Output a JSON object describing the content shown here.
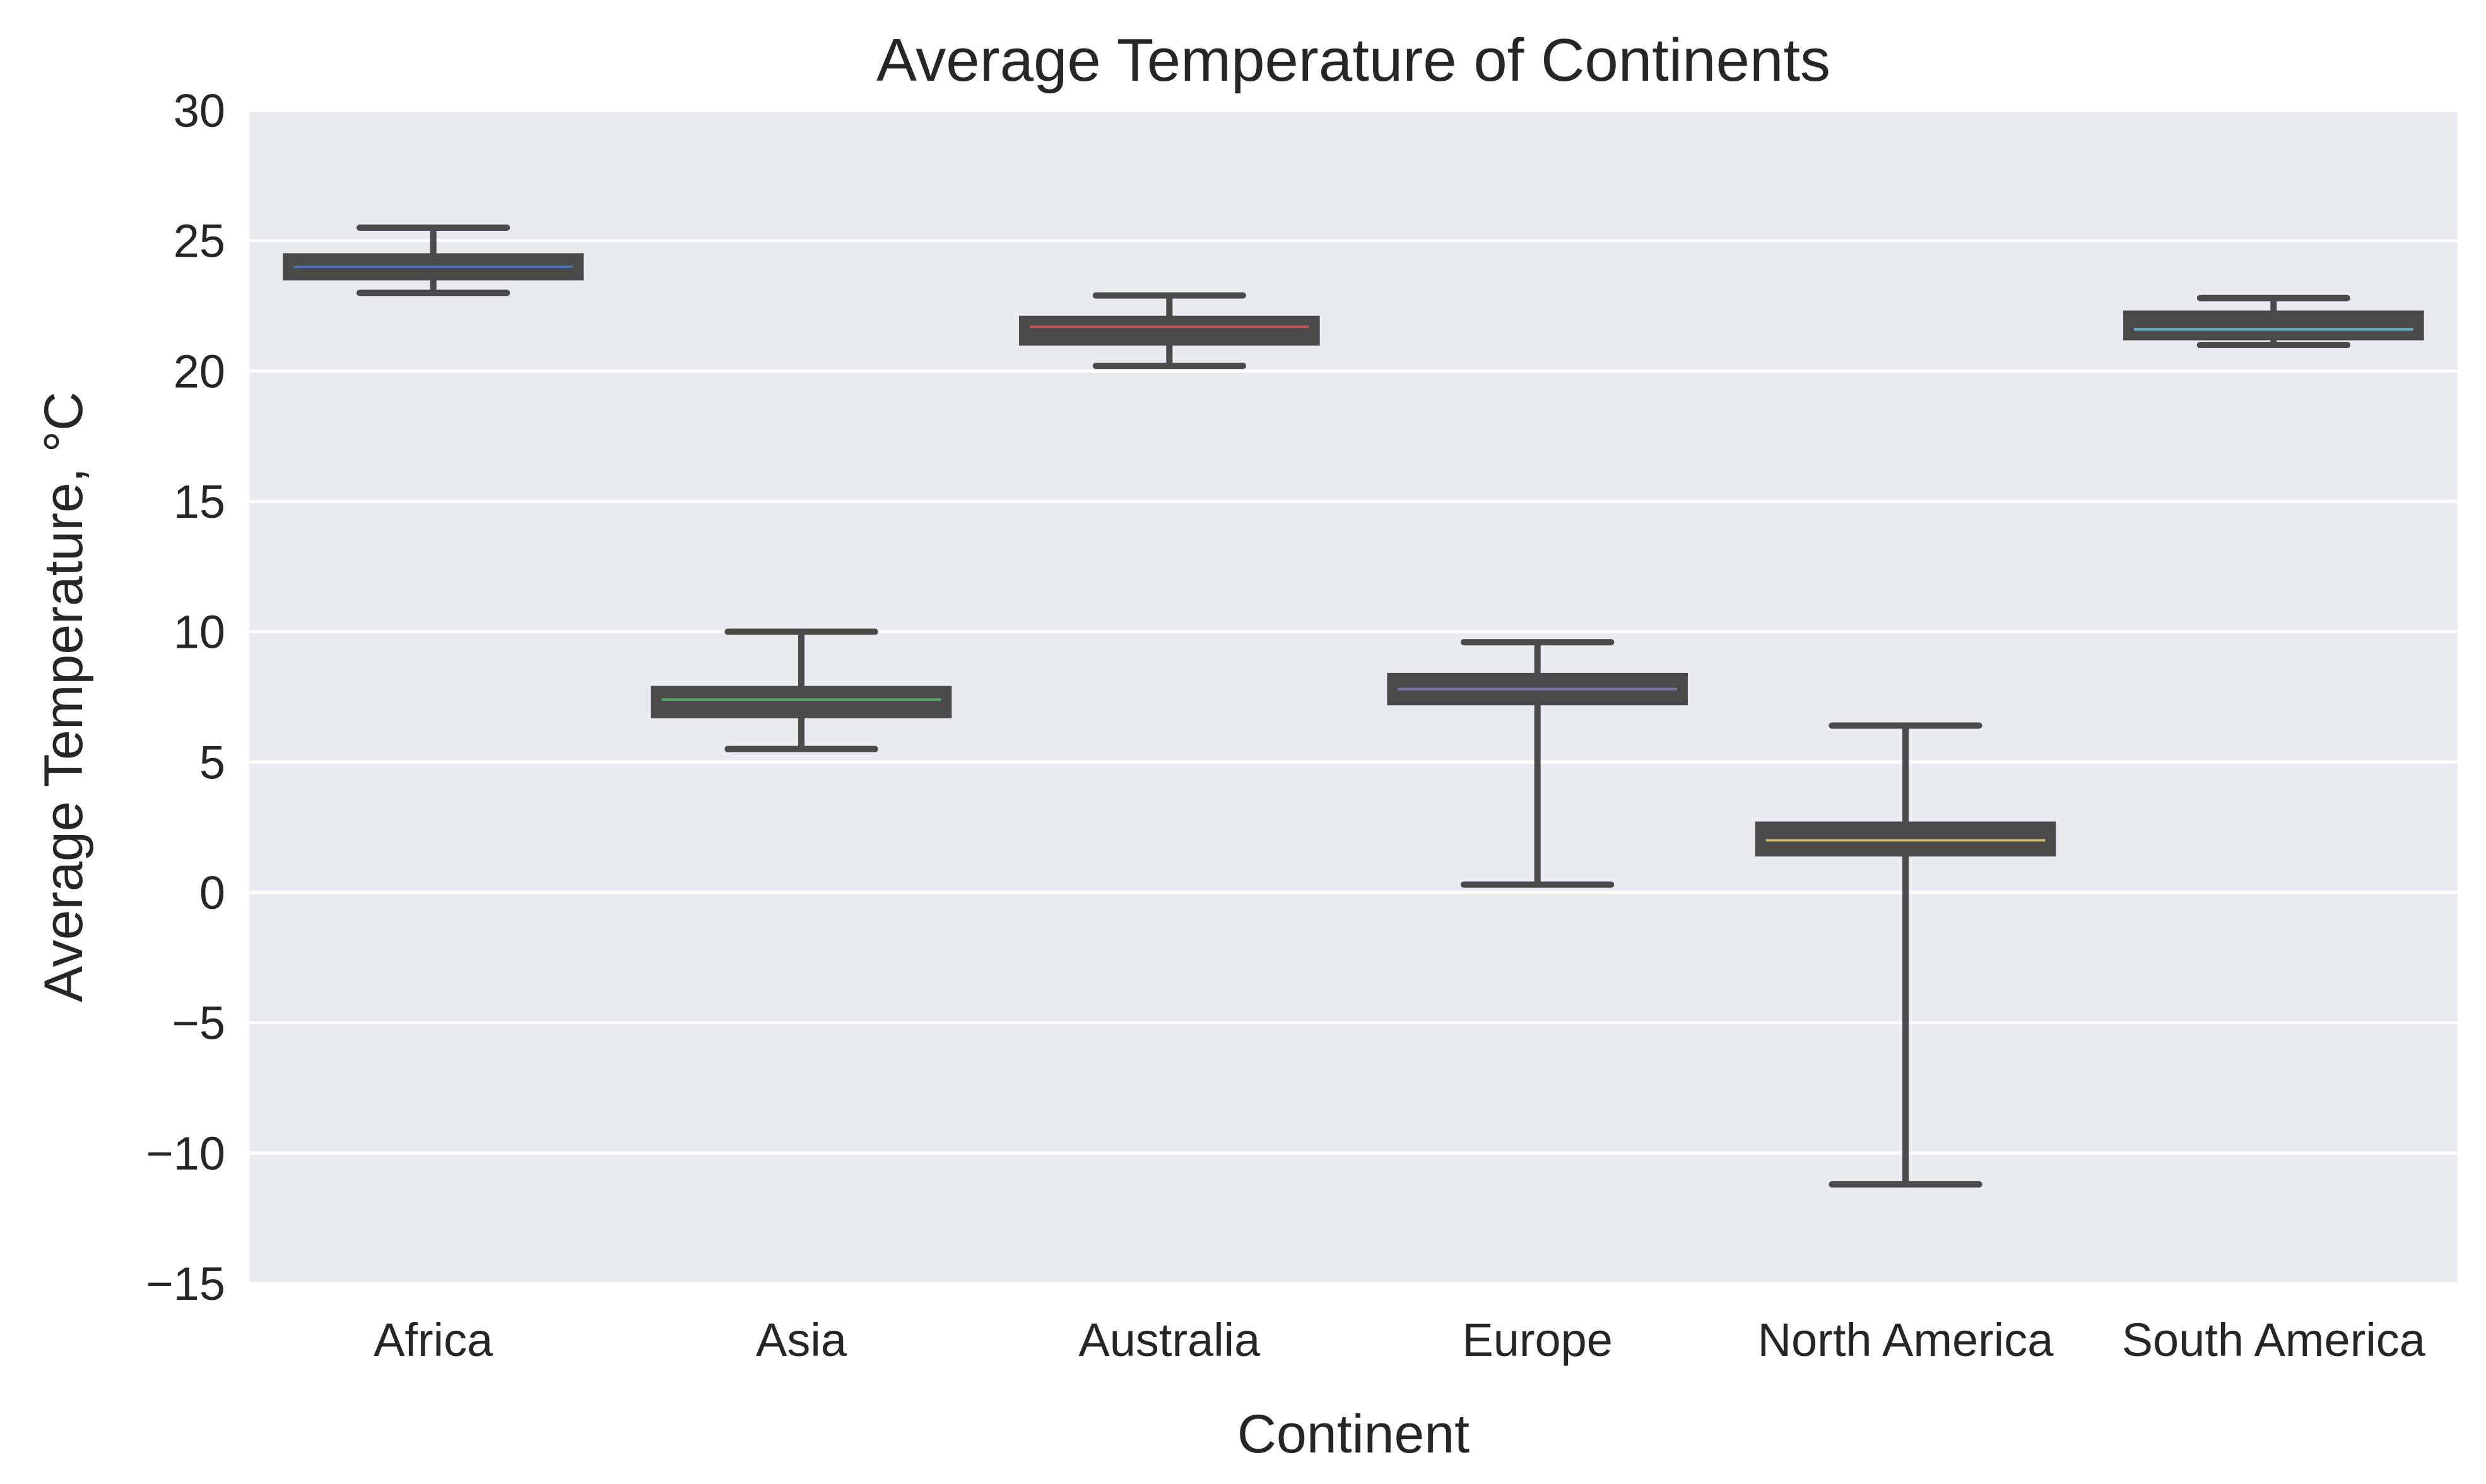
{
  "chart_data": {
    "type": "box",
    "title": "Average Temperature of Continents",
    "xlabel": "Continent",
    "ylabel": "Average Temperature, °C",
    "ylim": [
      -15,
      30
    ],
    "yticks": [
      30,
      25,
      20,
      15,
      10,
      5,
      0,
      -5,
      -10,
      -15
    ],
    "ytick_labels": [
      "30",
      "25",
      "20",
      "15",
      "10",
      "5",
      "0",
      "−5",
      "−10",
      "−15"
    ],
    "grid": true,
    "categories": [
      "Africa",
      "Asia",
      "Australia",
      "Europe",
      "North America",
      "South America"
    ],
    "boxes": [
      {
        "category": "Africa",
        "whisker_low": 23.0,
        "q1": 23.6,
        "median": 24.0,
        "q3": 24.4,
        "whisker_high": 25.5,
        "median_color": "#4c72b0"
      },
      {
        "category": "Asia",
        "whisker_low": 5.5,
        "q1": 6.8,
        "median": 7.4,
        "q3": 7.8,
        "whisker_high": 10.0,
        "median_color": "#55a868"
      },
      {
        "category": "Australia",
        "whisker_low": 20.2,
        "q1": 21.1,
        "median": 21.7,
        "q3": 22.0,
        "whisker_high": 22.9,
        "median_color": "#c44e52"
      },
      {
        "category": "Europe",
        "whisker_low": 0.3,
        "q1": 7.3,
        "median": 7.8,
        "q3": 8.3,
        "whisker_high": 9.6,
        "median_color": "#8172b2"
      },
      {
        "category": "North America",
        "whisker_low": -11.2,
        "q1": 1.5,
        "median": 2.0,
        "q3": 2.6,
        "whisker_high": 6.4,
        "median_color": "#ccb974"
      },
      {
        "category": "South America",
        "whisker_low": 21.0,
        "q1": 21.3,
        "median": 21.6,
        "q3": 22.2,
        "whisker_high": 22.8,
        "median_color": "#64b5cd"
      }
    ],
    "colors": {
      "plot_background": "#eaeaf2",
      "grid": "#ffffff",
      "box_line": "#4a4a4a",
      "text": "#262626"
    }
  }
}
